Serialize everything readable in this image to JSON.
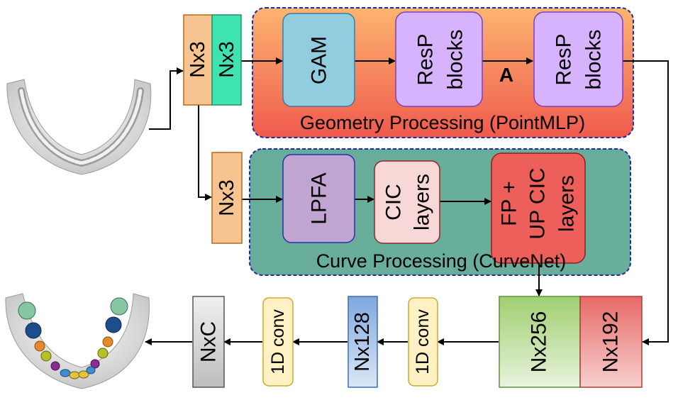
{
  "input_cols": {
    "a": "Nx3",
    "b": "Nx3"
  },
  "curve_input": "Nx3",
  "geometry": {
    "title": "Geometry Processing (PointMLP)",
    "gam": "GAM",
    "resp1": [
      "ResP",
      "blocks"
    ],
    "resp2": [
      "ResP",
      "blocks"
    ],
    "link_label": "A"
  },
  "curve": {
    "title": "Curve Processing (CurveNet)",
    "lpfa": "LPFA",
    "cic": [
      "CIC",
      "layers"
    ],
    "fp": [
      "FP +",
      "UP CIC",
      "layers"
    ]
  },
  "features": {
    "nx256": "Nx256",
    "nx192": "Nx192"
  },
  "head": {
    "conv1": "1D conv",
    "nx128": "Nx128",
    "conv2": "1D conv",
    "output": "NxC"
  },
  "colors": {
    "geometry_bg_top": "#fdb470",
    "geometry_bg_bottom": "#ef5a4d",
    "curve_bg": "#69ad9b",
    "gam": "#92cddf",
    "resp": "#d8b3fd",
    "lpfa": "#c0a4d2",
    "cic": "#f8d8d6",
    "fp": "#ec5f5a",
    "nx256": "#b5d88f",
    "nx192": "#ec8f8c",
    "nx128": "#a2c2e7",
    "conv": "#fff1c3",
    "output": "#d2d2d2",
    "nx3_orange": "#f7c491",
    "nx3_teal": "#3ee3b0",
    "dash": "#1f2b9a"
  }
}
